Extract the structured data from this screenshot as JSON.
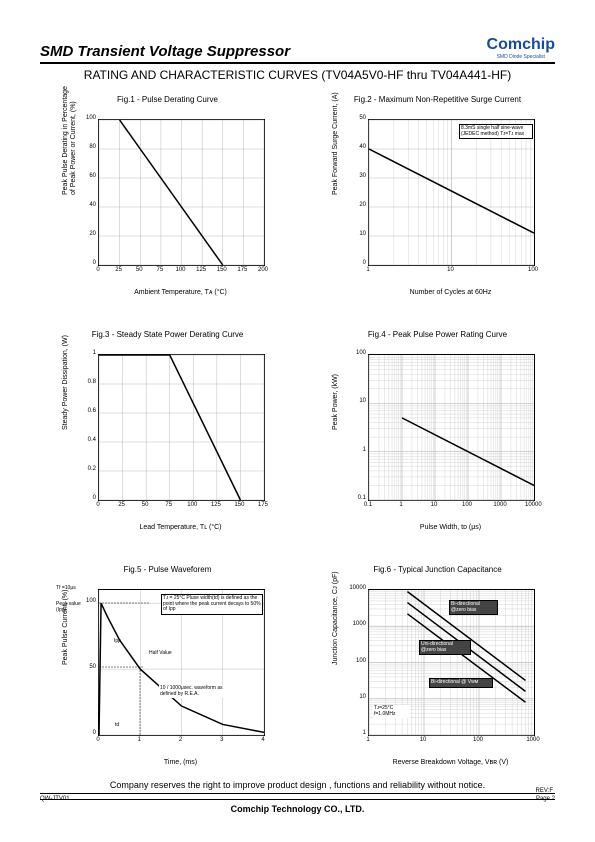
{
  "header": {
    "title": "SMD Transient Voltage Suppressor",
    "logo_main": "Comchip",
    "logo_sub": "SMD Diode Specialist"
  },
  "subtitle": "RATING AND CHARACTERISTIC CURVES (TV04A5V0-HF thru TV04A441-HF)",
  "footer": {
    "disclaimer": "Company reserves the right to improve product design , functions and reliability without notice.",
    "company": "Comchip Technology CO., LTD.",
    "rev": "REV:F",
    "code": "QW-JTV01",
    "page": "Page 2"
  },
  "fig1": {
    "title": "Fig.1 - Pulse Derating Curve",
    "ylabel": "Peak Pulse Derating in Percentage",
    "ylabel2": "of Peak Power or Current, (%)",
    "xlabel": "Ambient Temperature, Tᴀ (°C)",
    "xlim": [
      0,
      200
    ],
    "ylim": [
      0,
      100
    ],
    "xticks": [
      0,
      25,
      50,
      75,
      100,
      125,
      150,
      175,
      200
    ],
    "yticks": [
      0,
      20,
      40,
      60,
      80,
      100
    ],
    "line": [
      [
        25,
        100
      ],
      [
        150,
        0
      ]
    ],
    "colors": {
      "bg": "#ffffff",
      "grid": "#bbbbbb",
      "line": "#000000"
    }
  },
  "fig2": {
    "title": "Fig.2 - Maximum Non-Repetitive Surge Current",
    "ylabel": "Peak Forward Surge Current, (A)",
    "xlabel": "Number of Cycles at 60Hz",
    "xtype": "log",
    "xlim": [
      1,
      100
    ],
    "ylim": [
      0,
      50
    ],
    "xticks": [
      1,
      10,
      100
    ],
    "yticks": [
      0,
      10,
      20,
      30,
      40,
      50
    ],
    "line": [
      [
        1,
        40
      ],
      [
        100,
        11
      ]
    ],
    "note": "8.3mS single half sine-wave (JEDEC method) Tᴊ=Tᴊ max",
    "colors": {
      "bg": "#ffffff",
      "grid": "#bbbbbb",
      "line": "#000000"
    }
  },
  "fig3": {
    "title": "Fig.3 - Steady State Power Derating Curve",
    "ylabel": "Steady Power Dissipation, (W)",
    "xlabel": "Lead Temperature, Tʟ (°C)",
    "xlim": [
      0,
      175
    ],
    "ylim": [
      0,
      1.0
    ],
    "xticks": [
      0,
      25,
      50,
      75,
      100,
      125,
      150,
      175
    ],
    "yticks": [
      0,
      0.2,
      0.4,
      0.6,
      0.8,
      1.0
    ],
    "line": [
      [
        0,
        1.0
      ],
      [
        75,
        1.0
      ],
      [
        150,
        0
      ]
    ],
    "colors": {
      "bg": "#ffffff",
      "grid": "#bbbbbb",
      "line": "#000000"
    }
  },
  "fig4": {
    "title": "Fig.4 - Peak Pulse Power Rating Curve",
    "ylabel": "Peak Power, (kW)",
    "xlabel": "Pulse Width, tᴅ (μs)",
    "xtype": "log",
    "ytype": "log",
    "xlim": [
      0.1,
      10000
    ],
    "ylim": [
      0.1,
      100
    ],
    "xticks": [
      0.1,
      1,
      10,
      100,
      1000,
      10000
    ],
    "yticks": [
      0.1,
      1.0,
      10,
      100
    ],
    "line": [
      [
        1,
        5
      ],
      [
        10000,
        0.2
      ]
    ],
    "colors": {
      "bg": "#ffffff",
      "grid": "#bbbbbb",
      "line": "#000000"
    }
  },
  "fig5": {
    "title": "Fig.5 - Pulse Waveforem",
    "ylabel": "Peak Pulse Current, (%)",
    "xlabel": "Time, (ms)",
    "xlim": [
      0,
      4.0
    ],
    "ylim": [
      0,
      110
    ],
    "xticks": [
      0,
      1.0,
      2.0,
      3.0,
      4.0
    ],
    "yticks": [
      0,
      50,
      100
    ],
    "note1": "Tᴊ = 25°C Pluse width(td) is defined as the point where the peak current decays to 50% of Ipp",
    "note2": "10 / 1000μsec. waveform as defined by R.E.A.",
    "label_half": "Half Value",
    "label_tf": "Tf =10μs",
    "label_peak": "Peak value (Ipp)",
    "label_ipp": "Ipp",
    "label_td": "td",
    "curve": [
      [
        0,
        0
      ],
      [
        0.05,
        100
      ],
      [
        0.2,
        90
      ],
      [
        0.5,
        72
      ],
      [
        1.0,
        50
      ],
      [
        2.0,
        22
      ],
      [
        3.0,
        8
      ],
      [
        4.0,
        2
      ]
    ],
    "colors": {
      "bg": "#ffffff",
      "grid": "#bbbbbb",
      "line": "#000000"
    }
  },
  "fig6": {
    "title": "Fig.6 - Typical Junction Capacitance",
    "ylabel": "Junction Capacitance, Cᴊ (pF)",
    "xlabel": "Reverse Breakdown Voltage, Vʙʀ (V)",
    "xtype": "log",
    "ytype": "log",
    "xlim": [
      1,
      1000
    ],
    "ylim": [
      1,
      10000
    ],
    "xticks": [
      1,
      10,
      100,
      1000
    ],
    "yticks": [
      1,
      10,
      100,
      1000,
      10000
    ],
    "note_cond": "Tᴊ=25°C f=1.0MHz",
    "label1": "Bi-directional @zero bias",
    "label2": "Uni-directional @zero bias",
    "label3": "Bi-directional @ Vᴡᴍ",
    "lines": [
      [
        [
          5,
          9000
        ],
        [
          700,
          32
        ]
      ],
      [
        [
          5,
          4500
        ],
        [
          700,
          16
        ]
      ],
      [
        [
          5,
          2200
        ],
        [
          700,
          8
        ]
      ]
    ],
    "colors": {
      "bg": "#ffffff",
      "grid": "#bbbbbb",
      "line": "#000000"
    }
  }
}
